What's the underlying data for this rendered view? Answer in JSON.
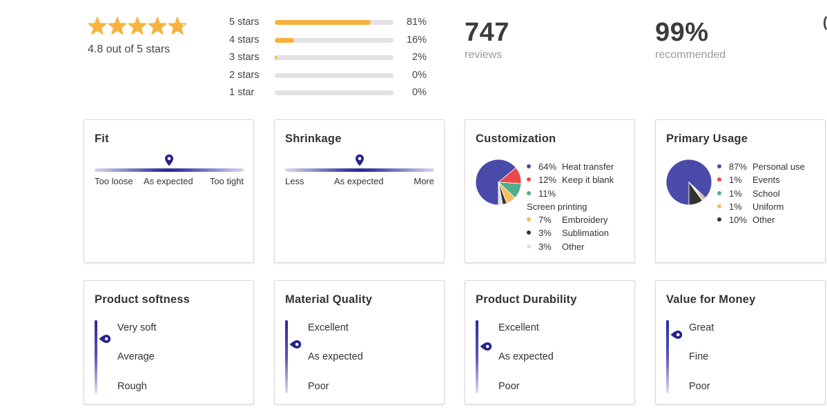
{
  "summary": {
    "rating_value": 4.8,
    "rating_max": 5,
    "average_label": "4.8 out of 5 stars",
    "distribution": [
      {
        "label": "5 stars",
        "percent_text": "81%",
        "percent": 81
      },
      {
        "label": "4 stars",
        "percent_text": "16%",
        "percent": 16
      },
      {
        "label": "3 stars",
        "percent_text": "2%",
        "percent": 2
      },
      {
        "label": "2 stars",
        "percent_text": "0%",
        "percent": 0
      },
      {
        "label": "1 star",
        "percent_text": "0%",
        "percent": 0
      }
    ],
    "reviews_count": "747",
    "reviews_label": "reviews",
    "recommended_value": "99%",
    "recommended_label": "recommended",
    "edge_text": "("
  },
  "colors": {
    "star": "#f7b33e",
    "bar_fill": "#f7b33e",
    "bar_track": "#e2e2e6",
    "scale_accent": "#2a299c",
    "pin": "#25248f"
  },
  "fit": {
    "title": "Fit",
    "labels": [
      "Too loose",
      "As expected",
      "Too tight"
    ],
    "marker_position": 0.5
  },
  "shrinkage": {
    "title": "Shrinkage",
    "labels": [
      "Less",
      "As expected",
      "More"
    ],
    "marker_position": 0.5
  },
  "customization": {
    "title": "Customization",
    "items": [
      {
        "pct": "64%",
        "label": "Heat transfer",
        "value": 64,
        "color": "#4a4aa8"
      },
      {
        "pct": "12%",
        "label": "Keep it blank",
        "value": 12,
        "color": "#ec4a4a"
      },
      {
        "pct": "11%",
        "label": "Screen printing",
        "value": 11,
        "color": "#4fae8e"
      },
      {
        "pct": "7%",
        "label": "Embroidery",
        "value": 7,
        "color": "#f6bd60"
      },
      {
        "pct": "3%",
        "label": "Sublimation",
        "value": 3,
        "color": "#333333"
      },
      {
        "pct": "3%",
        "label": "Other",
        "value": 3,
        "color": "#e0e0e0"
      }
    ]
  },
  "primary_usage": {
    "title": "Primary Usage",
    "items": [
      {
        "pct": "87%",
        "label": "Personal use",
        "value": 87,
        "color": "#4a4aa8"
      },
      {
        "pct": "1%",
        "label": "Events",
        "value": 1,
        "color": "#ec4a4a"
      },
      {
        "pct": "1%",
        "label": "School",
        "value": 1,
        "color": "#4fae8e"
      },
      {
        "pct": "1%",
        "label": "Uniform",
        "value": 1,
        "color": "#f6bd60"
      },
      {
        "pct": "10%",
        "label": "Other",
        "value": 10,
        "color": "#333333"
      }
    ]
  },
  "softness": {
    "title": "Product softness",
    "labels": [
      "Very soft",
      "Average",
      "Rough"
    ],
    "marker_level": 0.75
  },
  "material_quality": {
    "title": "Material Quality",
    "labels": [
      "Excellent",
      "As expected",
      "Poor"
    ],
    "marker_level": 0.67
  },
  "durability": {
    "title": "Product Durability",
    "labels": [
      "Excellent",
      "As expected",
      "Poor"
    ],
    "marker_level": 0.64
  },
  "value_for_money": {
    "title": "Value for Money",
    "labels": [
      "Great",
      "Fine",
      "Poor"
    ],
    "marker_level": 0.8
  }
}
